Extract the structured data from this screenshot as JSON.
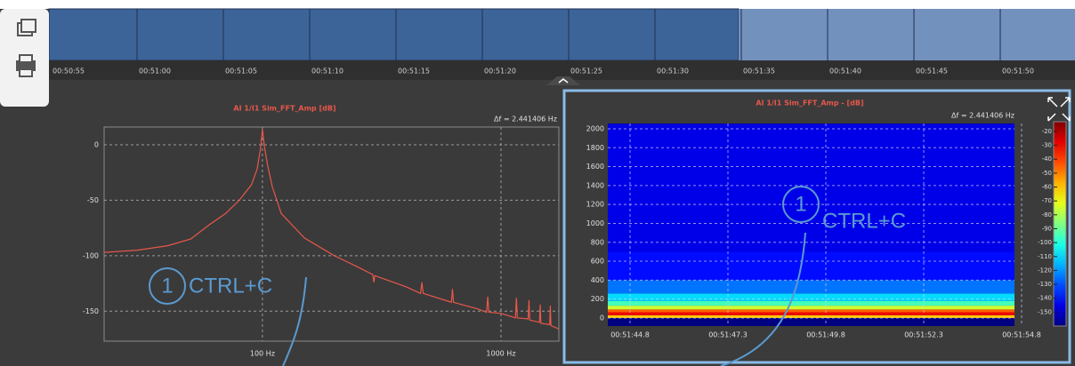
{
  "timeline": {
    "labels": [
      "00:50:55",
      "00:51:00",
      "00:51:05",
      "00:51:10",
      "00:51:15",
      "00:51:20",
      "00:51:25",
      "00:51:30",
      "00:51:35",
      "00:51:40",
      "00:51:45",
      "00:51:50"
    ]
  },
  "annotations": [
    {
      "number": "1",
      "text": "CTRL+C"
    },
    {
      "number": "1",
      "text": "CTRL+C"
    }
  ],
  "chart_data": [
    {
      "type": "line",
      "title": "AI 1/I1 Sim_FFT_Amp [dB]",
      "resolution": "Δf = 2.441406 Hz",
      "x_log": true,
      "grid": true,
      "xlim": [
        21.7,
        1748
      ],
      "ylim": [
        -177,
        16
      ],
      "xticks": [
        {
          "value": 100,
          "label": "100 Hz"
        },
        {
          "value": 1000,
          "label": "1000 Hz"
        }
      ],
      "yticks": [
        0,
        -50,
        -100,
        -150
      ],
      "series": [
        {
          "color": "#e8574a",
          "x": [
            21.7,
            30,
            40,
            50,
            60,
            70,
            80,
            90,
            95,
            98,
            100,
            102,
            105,
            110,
            120,
            150,
            200,
            250,
            290,
            293,
            296,
            400,
            460,
            466,
            472,
            600,
            620,
            626,
            632,
            800,
            870,
            880,
            890,
            1000,
            1150,
            1160,
            1170,
            1300,
            1310,
            1320,
            1450,
            1460,
            1470,
            1600,
            1610,
            1620,
            1748
          ],
          "values": [
            -97,
            -95,
            -91,
            -85,
            -72,
            -62,
            -50,
            -36,
            -22,
            -5,
            14,
            -2,
            -18,
            -38,
            -62,
            -84,
            -100,
            -110,
            -117,
            -124,
            -118,
            -128,
            -134,
            -124,
            -134,
            -141,
            -142,
            -130,
            -142,
            -148,
            -151,
            -137,
            -151,
            -152,
            -156,
            -138,
            -156,
            -157,
            -140,
            -158,
            -160,
            -144,
            -161,
            -162,
            -145,
            -163,
            -166
          ]
        }
      ]
    },
    {
      "type": "heatmap",
      "title": "AI 1/I1 Sim_FFT_Amp - [dB]",
      "resolution": "Δf = 2.441406 Hz",
      "grid": true,
      "ylim": [
        -85,
        2056
      ],
      "yticks": [
        0,
        200,
        400,
        600,
        800,
        1000,
        1200,
        1400,
        1600,
        1800,
        2000
      ],
      "x_tick_labels": [
        "00:51:44.8",
        "00:51:47.3",
        "00:51:49.8",
        "00:51:52.3",
        "00:51:54.8"
      ],
      "ybins": [
        0,
        30,
        60,
        90,
        130,
        180,
        260,
        400,
        700,
        2050
      ],
      "values": [
        -60,
        -30,
        -45,
        -75,
        -95,
        -110,
        -125,
        -140,
        -145
      ],
      "clim": [
        -160,
        -13
      ],
      "cticks": [
        -20,
        -30,
        -40,
        -50,
        -60,
        -70,
        -80,
        -90,
        -100,
        -110,
        -120,
        -130,
        -140,
        -150
      ]
    }
  ]
}
